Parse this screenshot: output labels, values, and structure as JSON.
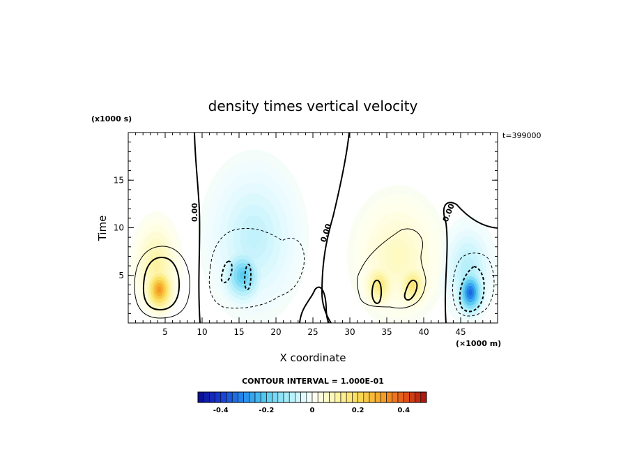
{
  "chart_data": {
    "type": "contour",
    "title": "density times vertical velocity",
    "xlabel": "X coordinate",
    "ylabel": "Time",
    "x_unit": "(×1000 m)",
    "y_unit": "(x1000 s)",
    "timestamp": "t=399000",
    "xlim": [
      0,
      50
    ],
    "ylim": [
      0,
      20
    ],
    "x_ticks": [
      5,
      10,
      15,
      20,
      25,
      30,
      35,
      40,
      45
    ],
    "y_ticks": [
      5,
      10,
      15
    ],
    "contour_interval_text": "CONTOUR INTERVAL = 1.000E-01",
    "zero_contour_label": "0.00",
    "colorbar": {
      "ticks": [
        -0.4,
        -0.2,
        0,
        0.2,
        0.4
      ],
      "tick_labels": [
        "-0.4",
        "-0.2",
        "0",
        "0.2",
        "0.4"
      ],
      "range": [
        -0.5,
        0.5
      ],
      "levels": 40
    },
    "features": [
      {
        "x": 4.2,
        "y": 3.5,
        "value": 0.33,
        "sx": 2.0,
        "sy": 2.4
      },
      {
        "x": 3.8,
        "y": 6.0,
        "value": 0.12,
        "sx": 3.2,
        "sy": 5.0
      },
      {
        "x": 15.5,
        "y": 5.0,
        "value": -0.21,
        "sx": 2.8,
        "sy": 3.0
      },
      {
        "x": 17.0,
        "y": 9.0,
        "value": -0.08,
        "sx": 6.5,
        "sy": 8.0
      },
      {
        "x": 34.0,
        "y": 4.0,
        "value": 0.17,
        "sx": 2.2,
        "sy": 2.4
      },
      {
        "x": 38.5,
        "y": 4.0,
        "value": 0.17,
        "sx": 2.2,
        "sy": 2.4
      },
      {
        "x": 36.5,
        "y": 7.0,
        "value": 0.08,
        "sx": 6.0,
        "sy": 6.5
      },
      {
        "x": 46.3,
        "y": 3.2,
        "value": -0.36,
        "sx": 1.8,
        "sy": 2.4
      },
      {
        "x": 46.0,
        "y": 5.5,
        "value": -0.1,
        "sx": 3.5,
        "sy": 5.0
      }
    ]
  }
}
